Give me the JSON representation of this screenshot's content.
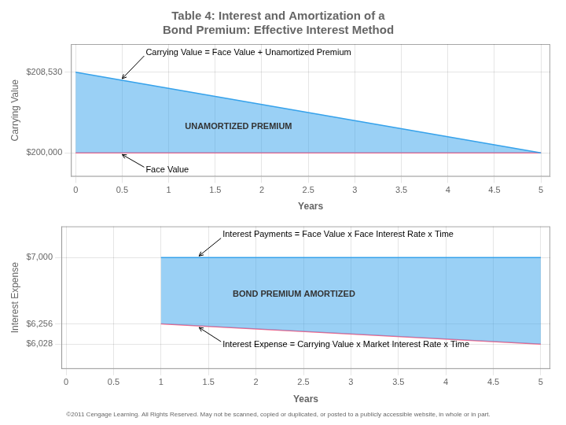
{
  "chart_data": [
    {
      "type": "line",
      "title": [
        "Table 4: Interest and Amortization of a",
        "Bond Premium: Effective Interest Method"
      ],
      "x_label": "Years",
      "y_label": "Carrying Value",
      "x": [
        0,
        5
      ],
      "series": [
        {
          "values": [
            208530,
            200000
          ]
        },
        {
          "values": [
            200000,
            200000
          ]
        }
      ],
      "xlim": [
        -0.05,
        5.1
      ],
      "xticks": [
        0,
        0.5,
        1,
        1.5,
        2,
        2.5,
        3,
        3.5,
        4,
        4.5,
        5
      ],
      "ylim": [
        197500,
        211500
      ],
      "yticks": [
        {
          "value": 200000,
          "label": "$200,000"
        },
        {
          "value": 208530,
          "label": "$208,530"
        }
      ],
      "grid": true,
      "annotations": [
        "UNAMORTIZED PREMIUM",
        "Carrying Value = Face Value + Unamortized Premium",
        "Face Value"
      ]
    },
    {
      "type": "line",
      "subtitle": "©2011 Cengage Learning. All Rights Reserved. May not be scanned, copied or duplicated, or posted to a publicly accessible website, in whole or in part.",
      "x_label": "Years",
      "y_label": "Interest Expense",
      "x": [
        1,
        5
      ],
      "series": [
        {
          "values": [
            7000,
            7000
          ]
        },
        {
          "values": [
            6256,
            6028
          ]
        }
      ],
      "xlim": [
        -0.05,
        5.1
      ],
      "xticks": [
        0,
        0.5,
        1,
        1.5,
        2,
        2.5,
        3,
        3.5,
        4,
        4.5,
        5
      ],
      "ylim": [
        5750,
        7350
      ],
      "yticks": [
        {
          "value": 6028,
          "label": "$6,028"
        },
        {
          "value": 6256,
          "label": "$6,256"
        },
        {
          "value": 7000,
          "label": "$7,000"
        }
      ],
      "grid": true,
      "annotations": [
        "BOND PREMIUM AMORTIZED",
        "Interest Payments = Face Value x Face Interest Rate x Time",
        "Interest Expense = Carrying Value x Market Interest Rate x Time"
      ]
    }
  ]
}
